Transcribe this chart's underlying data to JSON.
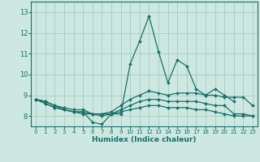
{
  "xlabel": "Humidex (Indice chaleur)",
  "ylabel": "",
  "xlim": [
    -0.5,
    23.5
  ],
  "ylim": [
    7.5,
    13.5
  ],
  "yticks": [
    8,
    9,
    10,
    11,
    12,
    13
  ],
  "xticks": [
    0,
    1,
    2,
    3,
    4,
    5,
    6,
    7,
    8,
    9,
    10,
    11,
    12,
    13,
    14,
    15,
    16,
    17,
    18,
    19,
    20,
    21,
    22,
    23
  ],
  "background_color": "#cce8e0",
  "grid_color": "#aad0c8",
  "line_color": "#1a7068",
  "series": [
    [
      8.8,
      8.7,
      8.5,
      8.3,
      8.2,
      8.2,
      7.7,
      7.6,
      8.1,
      8.1,
      10.5,
      11.6,
      12.8,
      11.1,
      9.6,
      10.7,
      10.4,
      9.3,
      9.0,
      9.3,
      9.0,
      8.7,
      null,
      null
    ],
    [
      8.8,
      8.7,
      8.5,
      8.4,
      8.3,
      8.3,
      8.1,
      8.1,
      8.2,
      8.5,
      8.8,
      9.0,
      9.2,
      9.1,
      9.0,
      9.1,
      9.1,
      9.1,
      9.0,
      9.0,
      8.9,
      8.9,
      8.9,
      8.5
    ],
    [
      8.8,
      8.6,
      8.4,
      8.3,
      8.2,
      8.2,
      8.1,
      8.1,
      8.1,
      8.3,
      8.5,
      8.7,
      8.8,
      8.8,
      8.7,
      8.7,
      8.7,
      8.7,
      8.6,
      8.5,
      8.5,
      8.1,
      8.1,
      8.0
    ],
    [
      8.8,
      8.6,
      8.4,
      8.3,
      8.2,
      8.1,
      8.1,
      8.0,
      8.1,
      8.2,
      8.3,
      8.4,
      8.5,
      8.5,
      8.4,
      8.4,
      8.4,
      8.3,
      8.3,
      8.2,
      8.1,
      8.0,
      8.0,
      8.0
    ]
  ]
}
